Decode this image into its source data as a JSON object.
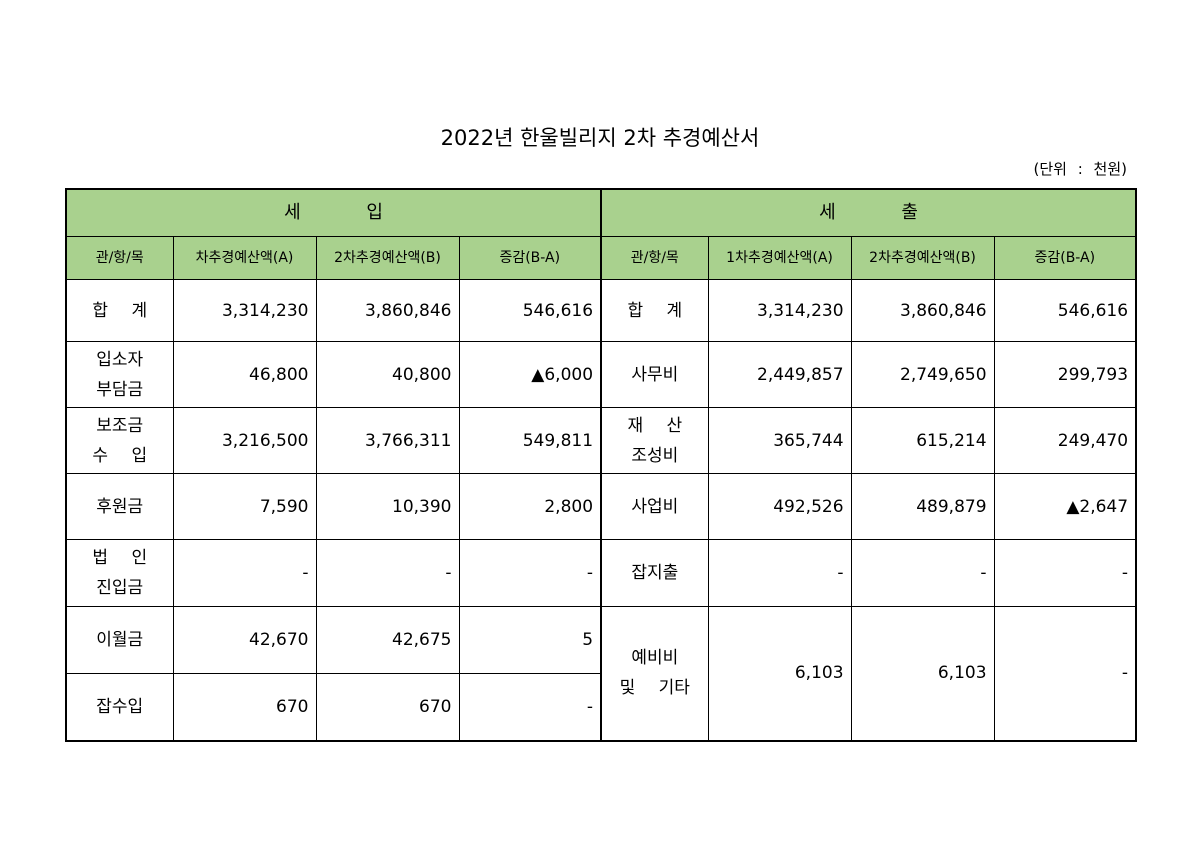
{
  "header": {
    "title": "2022년 한울빌리지 2차 추경예산서",
    "unit": "(단위 : 천원)"
  },
  "table": {
    "groups": [
      "세 입",
      "세 출"
    ],
    "columns_left": [
      "관/항/목",
      "차추경예산액(A)",
      "2차추경예산액(B)",
      "증감(B-A)"
    ],
    "columns_right": [
      "관/항/목",
      "1차추경예산액(A)",
      "2차추경예산액(B)",
      "증감(B-A)"
    ],
    "rows_left": [
      [
        "합 계",
        "3,314,230",
        "3,860,846",
        "546,616"
      ],
      [
        "입소자\n부담금",
        "46,800",
        "40,800",
        "▲6,000"
      ],
      [
        "보조금\n수 입",
        "3,216,500",
        "3,766,311",
        "549,811"
      ],
      [
        "후원금",
        "7,590",
        "10,390",
        "2,800"
      ],
      [
        "법 인\n진입금",
        "-",
        "-",
        "-"
      ],
      [
        "이월금",
        "42,670",
        "42,675",
        "5"
      ],
      [
        "잡수입",
        "670",
        "670",
        "-"
      ]
    ],
    "rows_right": [
      [
        "합 계",
        "3,314,230",
        "3,860,846",
        "546,616"
      ],
      [
        "사무비",
        "2,449,857",
        "2,749,650",
        "299,793"
      ],
      [
        "재 산\n조성비",
        "365,744",
        "615,214",
        "249,470"
      ],
      [
        "사업비",
        "492,526",
        "489,879",
        "▲2,647"
      ],
      [
        "잡지출",
        "-",
        "-",
        "-"
      ],
      [
        "예비비\n및 기타",
        "6,103",
        "6,103",
        "-"
      ]
    ]
  }
}
